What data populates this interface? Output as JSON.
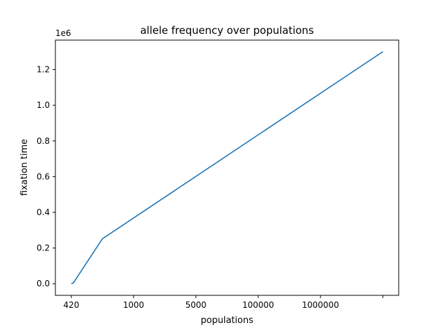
{
  "chart_data": {
    "type": "line",
    "title": "allele frequency over populations",
    "xlabel": "populations",
    "ylabel": "fixation time",
    "y_offset_label": "1e6",
    "x_categories": [
      "420",
      "1000",
      "5000",
      "100000",
      "1000000",
      ""
    ],
    "series": [
      {
        "x": [
          420,
          450,
          1000,
          1000000
        ],
        "y": [
          0,
          5000,
          252000,
          1300000
        ]
      }
    ],
    "yticks": [
      {
        "value": 0,
        "label": "0.0"
      },
      {
        "value": 200000,
        "label": "0.2"
      },
      {
        "value": 400000,
        "label": "0.4"
      },
      {
        "value": 600000,
        "label": "0.6"
      },
      {
        "value": 800000,
        "label": "0.8"
      },
      {
        "value": 1000000,
        "label": "1.0"
      },
      {
        "value": 1200000,
        "label": "1.2"
      }
    ],
    "ylim": [
      -65000,
      1365000
    ],
    "grid": false,
    "line_color": "#1f77b4"
  }
}
